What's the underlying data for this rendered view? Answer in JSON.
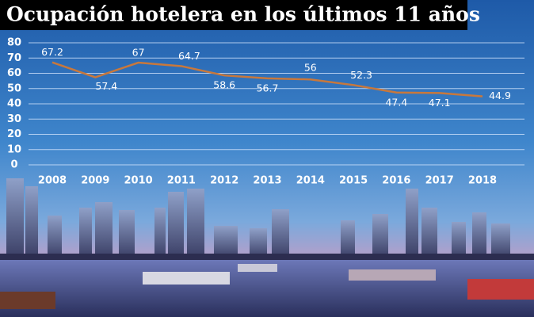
{
  "chart_data": {
    "type": "line",
    "title": "Ocupación hotelera en los últimos 11 años",
    "categories": [
      "2008",
      "2009",
      "2010",
      "2011",
      "2012",
      "2013",
      "2014",
      "2015",
      "2016",
      "2017",
      "2018"
    ],
    "series": [
      {
        "color": "#c8783c",
        "values": [
          67.2,
          57.4,
          67,
          64.7,
          58.6,
          56.7,
          56,
          52.3,
          47.4,
          47.1,
          44.9
        ]
      }
    ],
    "ylim": [
      0,
      80
    ],
    "yticks": [
      0,
      10,
      20,
      30,
      40,
      50,
      60,
      70,
      80
    ],
    "grid": true
  }
}
